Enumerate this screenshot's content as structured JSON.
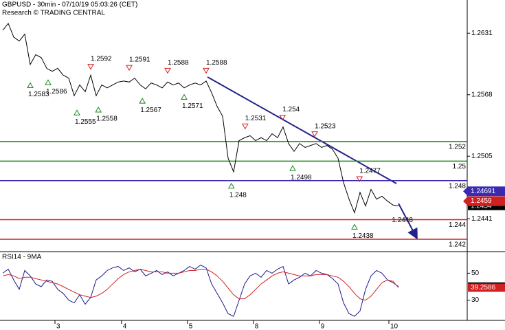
{
  "chart_data": [
    {
      "type": "line",
      "title": "GBPUSD - 30min - 07/10/19 05:03:26 (CET)",
      "subtitle": "Research © TRADING CENTRAL",
      "x": [
        0,
        1,
        2,
        3,
        4,
        5,
        6,
        7,
        8,
        9,
        10,
        11,
        12,
        13,
        14,
        15,
        16,
        17,
        18,
        19,
        20,
        21,
        22,
        23,
        24,
        25,
        26,
        27,
        28,
        29,
        30,
        31,
        32,
        33,
        34,
        35,
        36,
        37,
        38,
        39,
        40,
        41,
        42,
        43,
        44,
        45,
        46,
        47,
        48,
        49,
        50,
        51,
        52,
        53,
        54,
        55,
        56,
        57,
        58,
        59,
        60,
        61,
        62,
        63,
        64,
        65,
        66,
        67,
        68,
        69,
        70,
        71,
        72
      ],
      "xlim": [
        -0.5,
        84.5
      ],
      "xticks": [
        {
          "value": 9.5,
          "label": "3"
        },
        {
          "value": 21.6,
          "label": "4"
        },
        {
          "value": 33.6,
          "label": "5"
        },
        {
          "value": 45.6,
          "label": "8"
        },
        {
          "value": 57.6,
          "label": "9"
        },
        {
          "value": 70.25,
          "label": "10"
        }
      ],
      "ylim": [
        1.2408,
        1.2665
      ],
      "yticks": [
        1.2441,
        1.2505,
        1.2568,
        1.2631
      ],
      "series": [
        {
          "color": "#000000",
          "values": [
            1.2634,
            1.2641,
            1.2627,
            1.2623,
            1.263,
            1.2599,
            1.2609,
            1.2606,
            1.2595,
            1.2592,
            1.2595,
            1.2588,
            1.2585,
            1.2567,
            1.2578,
            1.2571,
            1.2588,
            1.2567,
            1.2578,
            1.2575,
            1.2578,
            1.2581,
            1.2582,
            1.2581,
            1.2585,
            1.2578,
            1.2574,
            1.258,
            1.2578,
            1.2575,
            1.2581,
            1.2578,
            1.258,
            1.2575,
            1.2578,
            1.258,
            1.2578,
            1.2582,
            1.257,
            1.2556,
            1.2546,
            1.2503,
            1.2489,
            1.2521,
            1.2524,
            1.2526,
            1.2521,
            1.2524,
            1.2521,
            1.2528,
            1.2524,
            1.2535,
            1.2518,
            1.251,
            1.2518,
            1.2514,
            1.2516,
            1.2518,
            1.2514,
            1.2516,
            1.2512,
            1.2503,
            1.2478,
            1.2461,
            1.2447,
            1.2468,
            1.2454,
            1.2471,
            1.2461,
            1.2464,
            1.2459,
            1.2455,
            1.2454
          ]
        }
      ],
      "levels": [
        {
          "value": 1.252,
          "color": "#1a8a1a"
        },
        {
          "value": 1.25,
          "color": "#1a8a1a"
        },
        {
          "value": 1.248,
          "color": "#3a2ab0"
        },
        {
          "value": 1.244,
          "color": "#d02020"
        },
        {
          "value": 1.242,
          "color": "#d02020"
        }
      ],
      "price_tags": [
        {
          "value": 1.24691,
          "color": "#3a2ab0"
        },
        {
          "value": 1.2459,
          "color": "#d02020"
        }
      ],
      "annotations": [
        {
          "x": 5,
          "value": 1.2583,
          "kind": "low"
        },
        {
          "x": 8.25,
          "value": 1.2586,
          "kind": "low"
        },
        {
          "x": 13.5,
          "value": 1.2555,
          "kind": "low"
        },
        {
          "x": 17.4,
          "value": 1.2558,
          "kind": "low"
        },
        {
          "x": 16,
          "value": 1.2592,
          "kind": "high"
        },
        {
          "x": 23,
          "value": 1.2591,
          "kind": "high"
        },
        {
          "x": 25.4,
          "value": 1.2567,
          "kind": "low"
        },
        {
          "x": 30,
          "value": 1.2588,
          "kind": "high"
        },
        {
          "x": 33,
          "value": 1.2571,
          "kind": "low"
        },
        {
          "x": 37,
          "value": 1.2588,
          "kind": "high"
        },
        {
          "x": 41.6,
          "value": 1.248,
          "kind": "low"
        },
        {
          "x": 44.1,
          "value": 1.2531,
          "kind": "high"
        },
        {
          "x": 50.9,
          "value": 1.254,
          "kind": "high"
        },
        {
          "x": 52.75,
          "value": 1.2498,
          "kind": "low"
        },
        {
          "x": 56.75,
          "value": 1.2523,
          "kind": "high"
        },
        {
          "x": 64.9,
          "value": 1.2477,
          "kind": "high"
        },
        {
          "x": 64,
          "value": 1.2438,
          "kind": "low"
        },
        {
          "x": 72.3,
          "value": 1.2448,
          "kind": "label"
        }
      ]
    },
    {
      "type": "line",
      "title": "RSI14 - 9MA",
      "x": [
        0,
        1,
        2,
        3,
        4,
        5,
        6,
        7,
        8,
        9,
        10,
        11,
        12,
        13,
        14,
        15,
        16,
        17,
        18,
        19,
        20,
        21,
        22,
        23,
        24,
        25,
        26,
        27,
        28,
        29,
        30,
        31,
        32,
        33,
        34,
        35,
        36,
        37,
        38,
        39,
        40,
        41,
        42,
        43,
        44,
        45,
        46,
        47,
        48,
        49,
        50,
        51,
        52,
        53,
        54,
        55,
        56,
        57,
        58,
        59,
        60,
        61,
        62,
        63,
        64,
        65,
        66,
        67,
        68,
        69,
        70,
        71,
        72
      ],
      "xlim": [
        -0.5,
        84.5
      ],
      "ylim": [
        15,
        65
      ],
      "yticks": [
        30,
        50
      ],
      "series": [
        {
          "color": "#1a1a8a",
          "values": [
            50,
            53,
            45,
            38,
            52,
            48,
            42,
            40,
            45,
            44,
            38,
            35,
            30,
            28,
            34,
            27,
            32,
            45,
            48,
            52,
            54,
            55,
            52,
            54,
            51,
            53,
            48,
            50,
            52,
            49,
            51,
            48,
            50,
            52,
            55,
            53,
            56,
            54,
            42,
            35,
            28,
            20,
            18,
            30,
            42,
            48,
            50,
            47,
            52,
            50,
            53,
            55,
            42,
            45,
            47,
            50,
            48,
            52,
            50,
            49,
            46,
            42,
            28,
            20,
            18,
            22,
            38,
            48,
            52,
            50,
            45,
            43,
            40.1395
          ]
        },
        {
          "color": "#d02020",
          "values": [
            48,
            49,
            48,
            46,
            47,
            47,
            46,
            45,
            44,
            43,
            42,
            40,
            38,
            36,
            34,
            33,
            32,
            33,
            35,
            38,
            42,
            46,
            49,
            51,
            52,
            53,
            52,
            51,
            51,
            51,
            50,
            50,
            50,
            51,
            52,
            52,
            53,
            53,
            51,
            48,
            44,
            39,
            34,
            31,
            31,
            34,
            38,
            42,
            45,
            48,
            50,
            51,
            50,
            49,
            48,
            48,
            48,
            49,
            49,
            49,
            48,
            47,
            44,
            40,
            35,
            31,
            30,
            33,
            38,
            43,
            45,
            44,
            39.2586
          ]
        }
      ]
    }
  ]
}
